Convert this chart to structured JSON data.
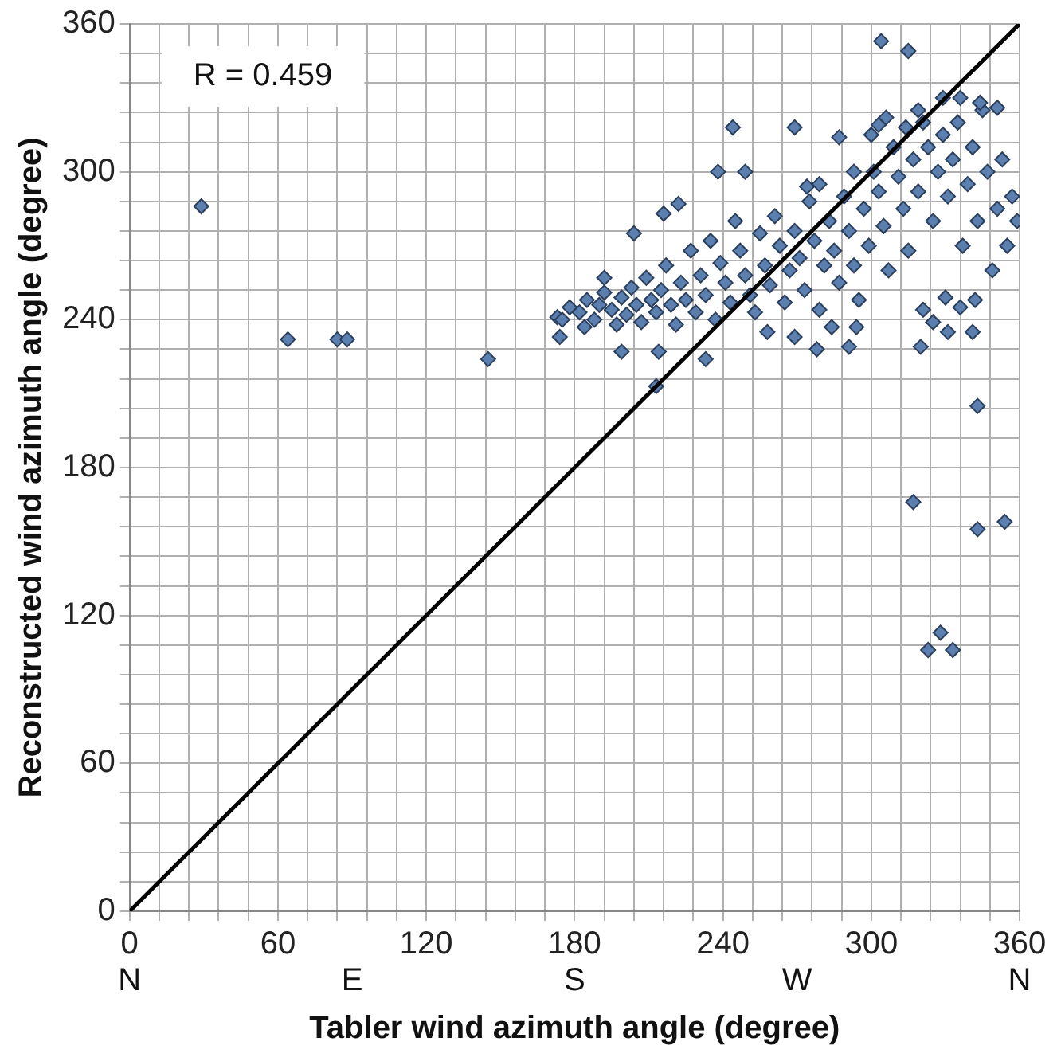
{
  "chart_data": {
    "type": "scatter",
    "xlabel": "Tabler wind azimuth angle (degree)",
    "ylabel": "Reconstructed wind azimuth angle (degree)",
    "annotations": [
      "R = 0.459",
      "N",
      "E",
      "S",
      "W",
      "N"
    ],
    "xlim": [
      0,
      360
    ],
    "ylim": [
      0,
      360
    ],
    "xticks": [
      0,
      {
        "value": 12,
        "label": null
      },
      {
        "value": 24,
        "label": null
      },
      {
        "value": 36,
        "label": null
      },
      {
        "value": 48,
        "label": null
      },
      60,
      {
        "value": 72,
        "label": null
      },
      {
        "value": 84,
        "label": null
      },
      {
        "value": 96,
        "label": null
      },
      {
        "value": 108,
        "label": null
      },
      120,
      {
        "value": 132,
        "label": null
      },
      {
        "value": 144,
        "label": null
      },
      {
        "value": 156,
        "label": null
      },
      {
        "value": 168,
        "label": null
      },
      180,
      {
        "value": 192,
        "label": null
      },
      {
        "value": 204,
        "label": null
      },
      {
        "value": 216,
        "label": null
      },
      {
        "value": 228,
        "label": null
      },
      240,
      {
        "value": 252,
        "label": null
      },
      {
        "value": 264,
        "label": null
      },
      {
        "value": 276,
        "label": null
      },
      {
        "value": 288,
        "label": null
      },
      300,
      {
        "value": 312,
        "label": null
      },
      {
        "value": 324,
        "label": null
      },
      {
        "value": 336,
        "label": null
      },
      {
        "value": 348,
        "label": null
      },
      360
    ],
    "yticks": [
      0,
      {
        "value": 12,
        "label": null
      },
      {
        "value": 24,
        "label": null
      },
      {
        "value": 36,
        "label": null
      },
      {
        "value": 48,
        "label": null
      },
      60,
      {
        "value": 72,
        "label": null
      },
      {
        "value": 84,
        "label": null
      },
      {
        "value": 96,
        "label": null
      },
      {
        "value": 108,
        "label": null
      },
      120,
      {
        "value": 132,
        "label": null
      },
      {
        "value": 144,
        "label": null
      },
      {
        "value": 156,
        "label": null
      },
      {
        "value": 168,
        "label": null
      },
      180,
      {
        "value": 192,
        "label": null
      },
      {
        "value": 204,
        "label": null
      },
      {
        "value": 216,
        "label": null
      },
      {
        "value": 228,
        "label": null
      },
      240,
      {
        "value": 252,
        "label": null
      },
      {
        "value": 264,
        "label": null
      },
      {
        "value": 276,
        "label": null
      },
      {
        "value": 288,
        "label": null
      },
      300,
      {
        "value": 312,
        "label": null
      },
      {
        "value": 324,
        "label": null
      },
      {
        "value": 336,
        "label": null
      },
      {
        "value": 348,
        "label": null
      },
      360
    ],
    "grid": true,
    "legend": false,
    "series": [
      {
        "color": "#5b7fae",
        "marker": "diamond",
        "x": [
          29,
          64,
          84,
          88,
          145,
          343,
          317,
          343,
          354,
          328,
          323,
          333,
          321,
          325,
          331,
          341,
          320,
          336,
          342,
          330,
          199,
          214,
          233,
          174,
          173,
          184,
          278,
          291,
          258,
          269,
          284,
          294,
          213,
          244,
          269,
          287,
          238,
          249,
          204,
          192,
          222,
          216,
          303,
          274,
          279,
          293,
          304,
          315,
          175,
          178,
          182,
          185,
          188,
          190,
          192,
          195,
          197,
          199,
          201,
          203,
          205,
          207,
          209,
          211,
          213,
          215,
          217,
          219,
          221,
          223,
          225,
          227,
          229,
          231,
          233,
          235,
          237,
          239,
          241,
          243,
          245,
          247,
          249,
          251,
          253,
          255,
          257,
          259,
          261,
          263,
          265,
          267,
          269,
          271,
          273,
          275,
          277,
          279,
          281,
          283,
          285,
          287,
          289,
          291,
          293,
          295,
          297,
          299,
          301,
          303,
          305,
          307,
          309,
          311,
          313,
          315,
          317,
          319,
          321,
          323,
          325,
          327,
          329,
          331,
          333,
          335,
          337,
          339,
          341,
          343,
          345,
          347,
          349,
          351,
          353,
          355,
          357,
          359,
          329,
          336,
          344,
          351,
          319,
          314,
          306,
          300
        ],
        "values": [
          286,
          232,
          232,
          232,
          224,
          205,
          166,
          155,
          158,
          113,
          106,
          106,
          244,
          239,
          235,
          235,
          229,
          245,
          248,
          249,
          227,
          227,
          224,
          233,
          241,
          237,
          228,
          229,
          235,
          233,
          237,
          237,
          213,
          318,
          318,
          314,
          300,
          300,
          275,
          257,
          287,
          283,
          319,
          294,
          295,
          300,
          353,
          349,
          240,
          245,
          243,
          248,
          240,
          246,
          251,
          244,
          238,
          249,
          242,
          253,
          246,
          239,
          257,
          248,
          243,
          252,
          262,
          246,
          238,
          255,
          248,
          268,
          243,
          258,
          250,
          272,
          240,
          263,
          255,
          247,
          280,
          268,
          258,
          250,
          243,
          275,
          262,
          254,
          282,
          270,
          247,
          260,
          276,
          265,
          252,
          288,
          272,
          244,
          262,
          280,
          268,
          255,
          290,
          276,
          262,
          248,
          285,
          270,
          300,
          292,
          278,
          260,
          310,
          298,
          285,
          268,
          305,
          292,
          320,
          310,
          280,
          300,
          315,
          290,
          305,
          320,
          270,
          295,
          310,
          280,
          325,
          300,
          260,
          285,
          305,
          270,
          290,
          280,
          330,
          330,
          328,
          326,
          325,
          318,
          322,
          315
        ]
      },
      {
        "type": "line",
        "color": "#000000",
        "marker": "none",
        "line_style": "solid",
        "x": [
          0,
          360
        ],
        "values": [
          0,
          360
        ]
      }
    ]
  }
}
